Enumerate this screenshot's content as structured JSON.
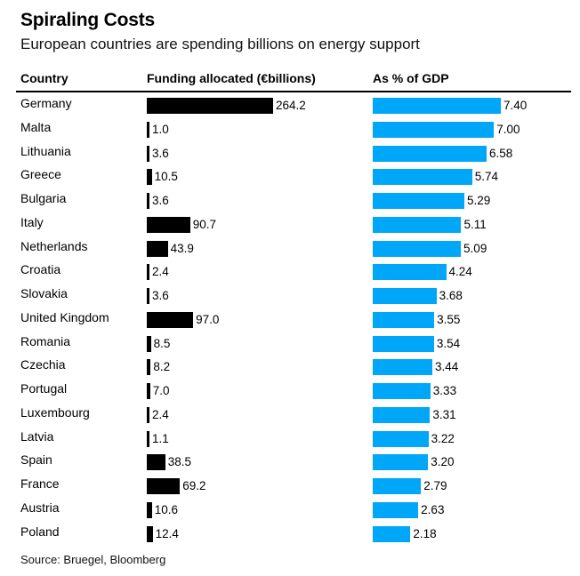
{
  "chart_data": {
    "type": "bar",
    "title": "Spiraling Costs",
    "subtitle": "European countries are spending billions on energy support",
    "columns": [
      "Country",
      "Funding allocated (€billions)",
      "As % of GDP"
    ],
    "categories": [
      "Germany",
      "Malta",
      "Lithuania",
      "Greece",
      "Bulgaria",
      "Italy",
      "Netherlands",
      "Croatia",
      "Slovakia",
      "United Kingdom",
      "Romania",
      "Czechia",
      "Portugal",
      "Luxembourg",
      "Latvia",
      "Spain",
      "France",
      "Austria",
      "Poland"
    ],
    "series": [
      {
        "name": "Funding allocated (€billions)",
        "color": "#000000",
        "values": [
          264.2,
          1.0,
          3.6,
          10.5,
          3.6,
          90.7,
          43.9,
          2.4,
          3.6,
          97.0,
          8.5,
          8.2,
          7.0,
          2.4,
          1.1,
          38.5,
          69.2,
          10.6,
          12.4
        ],
        "labels": [
          "264.2",
          "1.0",
          "3.6",
          "10.5",
          "3.6",
          "90.7",
          "43.9",
          "2.4",
          "3.6",
          "97.0",
          "8.5",
          "8.2",
          "7.0",
          "2.4",
          "1.1",
          "38.5",
          "69.2",
          "10.6",
          "12.4"
        ]
      },
      {
        "name": "As % of GDP",
        "color": "#00a6f7",
        "values": [
          7.4,
          7.0,
          6.58,
          5.74,
          5.29,
          5.11,
          5.09,
          4.24,
          3.68,
          3.55,
          3.54,
          3.44,
          3.33,
          3.31,
          3.22,
          3.2,
          2.79,
          2.63,
          2.18
        ],
        "labels": [
          "7.40",
          "7.00",
          "6.58",
          "5.74",
          "5.29",
          "5.11",
          "5.09",
          "4.24",
          "3.68",
          "3.55",
          "3.54",
          "3.44",
          "3.33",
          "3.31",
          "3.22",
          "3.20",
          "2.79",
          "2.63",
          "2.18"
        ]
      }
    ],
    "source": "Source: Bruegel, Bloomberg"
  }
}
